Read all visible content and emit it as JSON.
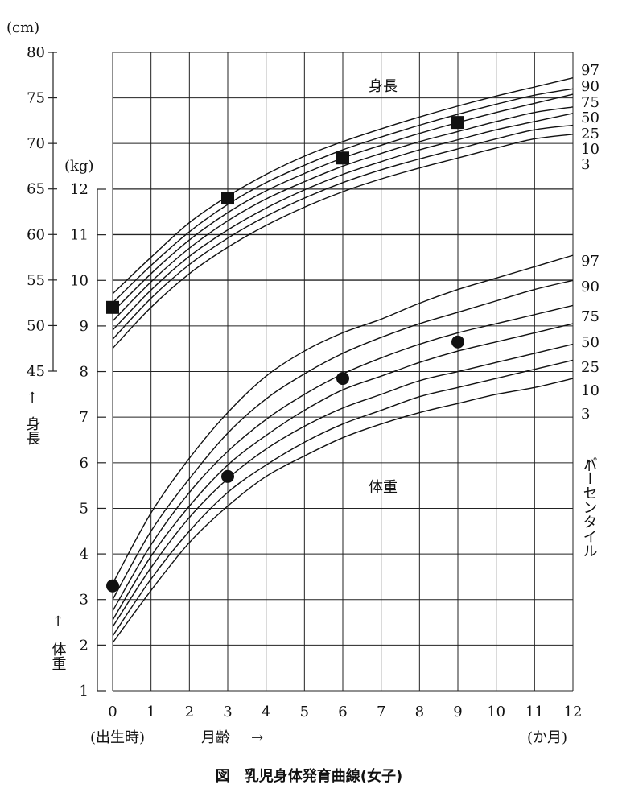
{
  "chart_data": {
    "type": "line",
    "caption": "図　乳児身体発育曲線(女子)",
    "x": [
      0,
      1,
      2,
      3,
      4,
      5,
      6,
      7,
      8,
      9,
      10,
      11,
      12
    ],
    "x_ticks": [
      "0",
      "1",
      "2",
      "3",
      "4",
      "5",
      "6",
      "7",
      "8",
      "9",
      "10",
      "11",
      "12"
    ],
    "xlim": [
      0,
      12
    ],
    "x_note_left": "(出生時)",
    "x_axis_label": "月齢",
    "x_arrow": "→",
    "x_unit": "(か月)",
    "grid": true,
    "percentile_axis_label": "パーセンタイル",
    "percentile_arrow": "↑",
    "height": {
      "area_label": "身長",
      "axis_unit": "(cm)",
      "axis_label": "身長",
      "axis_arrow": "↑",
      "ylim": [
        45,
        80
      ],
      "y_ticks": [
        "45",
        "50",
        "55",
        "60",
        "65",
        "70",
        "75",
        "80"
      ],
      "percentile_labels": [
        "97",
        "90",
        "75",
        "50",
        "25",
        "10",
        "3"
      ],
      "series": [
        {
          "name": "97",
          "values": [
            53.5,
            57.5,
            61.3,
            64.2,
            66.6,
            68.6,
            70.2,
            71.6,
            72.9,
            74.1,
            75.2,
            76.2,
            77.2
          ]
        },
        {
          "name": "90",
          "values": [
            52.5,
            56.6,
            60.3,
            63.3,
            65.7,
            67.6,
            69.3,
            70.7,
            72.0,
            73.2,
            74.3,
            75.3,
            76.0
          ]
        },
        {
          "name": "75",
          "values": [
            51.5,
            55.7,
            59.4,
            62.4,
            64.8,
            66.7,
            68.4,
            69.8,
            71.1,
            72.3,
            73.4,
            74.4,
            75.4
          ]
        },
        {
          "name": "50",
          "values": [
            50.5,
            54.8,
            58.5,
            61.5,
            63.9,
            65.8,
            67.5,
            68.9,
            70.2,
            71.3,
            72.4,
            73.4,
            74.0
          ]
        },
        {
          "name": "25",
          "values": [
            49.5,
            53.9,
            57.6,
            60.5,
            62.9,
            64.9,
            66.6,
            68.0,
            69.3,
            70.4,
            71.5,
            72.4,
            73.3
          ]
        },
        {
          "name": "10",
          "values": [
            48.5,
            53.0,
            56.7,
            59.6,
            62.0,
            64.0,
            65.7,
            67.1,
            68.3,
            69.4,
            70.5,
            71.5,
            72.0
          ]
        },
        {
          "name": "3",
          "values": [
            47.5,
            52.0,
            55.7,
            58.6,
            61.0,
            63.0,
            64.7,
            66.1,
            67.3,
            68.4,
            69.5,
            70.5,
            71.0
          ]
        }
      ],
      "measurements": {
        "x": [
          0,
          3,
          6,
          9
        ],
        "values": [
          52.0,
          64.0,
          68.4,
          72.3
        ]
      }
    },
    "weight": {
      "area_label": "体重",
      "axis_unit": "(kg)",
      "axis_label": "体重",
      "axis_arrow": "↑",
      "ylim": [
        1,
        12
      ],
      "y_ticks": [
        "1",
        "2",
        "3",
        "4",
        "5",
        "6",
        "7",
        "8",
        "9",
        "10",
        "11",
        "12"
      ],
      "percentile_labels": [
        "97",
        "90",
        "75",
        "50",
        "25",
        "10",
        "3"
      ],
      "series": [
        {
          "name": "97",
          "values": [
            3.35,
            4.9,
            6.1,
            7.1,
            7.9,
            8.45,
            8.85,
            9.15,
            9.5,
            9.8,
            10.05,
            10.3,
            10.55
          ]
        },
        {
          "name": "90",
          "values": [
            3.0,
            4.5,
            5.65,
            6.65,
            7.4,
            7.95,
            8.4,
            8.75,
            9.05,
            9.3,
            9.55,
            9.8,
            10.0
          ]
        },
        {
          "name": "75",
          "values": [
            2.75,
            4.2,
            5.35,
            6.25,
            6.95,
            7.5,
            7.95,
            8.3,
            8.6,
            8.85,
            9.05,
            9.25,
            9.45
          ]
        },
        {
          "name": "50",
          "values": [
            2.55,
            3.95,
            5.05,
            5.95,
            6.6,
            7.15,
            7.6,
            7.9,
            8.2,
            8.45,
            8.65,
            8.85,
            9.05
          ]
        },
        {
          "name": "25",
          "values": [
            2.4,
            3.7,
            4.8,
            5.65,
            6.3,
            6.8,
            7.2,
            7.5,
            7.8,
            8.0,
            8.2,
            8.4,
            8.6
          ]
        },
        {
          "name": "10",
          "values": [
            2.2,
            3.45,
            4.5,
            5.35,
            5.95,
            6.45,
            6.85,
            7.15,
            7.45,
            7.65,
            7.85,
            8.05,
            8.25
          ]
        },
        {
          "name": "3",
          "values": [
            2.05,
            3.2,
            4.25,
            5.05,
            5.7,
            6.15,
            6.55,
            6.85,
            7.1,
            7.3,
            7.5,
            7.65,
            7.85
          ]
        }
      ],
      "measurements": {
        "x": [
          0,
          3,
          6,
          9
        ],
        "values": [
          3.3,
          5.7,
          7.85,
          8.65
        ]
      }
    }
  }
}
